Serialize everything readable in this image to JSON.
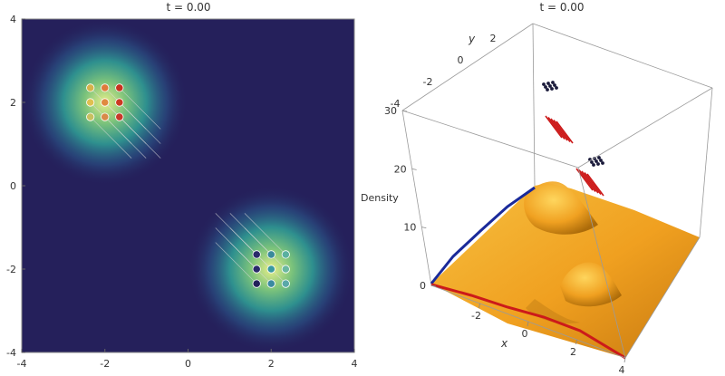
{
  "chart_data": [
    {
      "type": "heatmap",
      "title": "t = 0.00",
      "xlim": [
        -4,
        4
      ],
      "ylim": [
        -4,
        4
      ],
      "x_ticks": [
        -4,
        -2,
        0,
        2,
        4
      ],
      "y_ticks": [
        -4,
        -2,
        0,
        2,
        4
      ],
      "colormap": [
        "#24205a",
        "#2a5a8c",
        "#2f9c94",
        "#7cc37b",
        "#e6ee8a"
      ],
      "background_color": "#25205b",
      "density_peaks": [
        {
          "x": -2,
          "y": 2,
          "sigma": 1.0
        },
        {
          "x": 2,
          "y": -2,
          "sigma": 1.0
        }
      ],
      "particle_groups": [
        {
          "center": [
            -2,
            2
          ],
          "grid": [
            3,
            3
          ],
          "spacing": 0.35,
          "colors": [
            [
              "#d6b24a",
              "#e07a3a",
              "#c8321e"
            ],
            [
              "#e0c050",
              "#e08a40",
              "#cc3a22"
            ],
            [
              "#c8c060",
              "#d88a48",
              "#c83a2a"
            ]
          ],
          "trail_direction": [
            1.0,
            -1.0
          ],
          "trail_length": 1.4
        },
        {
          "center": [
            2,
            -2
          ],
          "grid": [
            3,
            3
          ],
          "spacing": 0.35,
          "colors": [
            [
              "#2a2a6a",
              "#3a8a9a",
              "#5ab0a0"
            ],
            [
              "#2a2a6a",
              "#3a9aa0",
              "#6ab8a0"
            ],
            [
              "#22225a",
              "#3a8aa0",
              "#5aa8a8"
            ]
          ],
          "trail_direction": [
            -1.0,
            1.0
          ],
          "trail_length": 1.4
        }
      ]
    },
    {
      "type": "surface3d",
      "title": "t = 0.00",
      "xlabel": "x",
      "ylabel": "y",
      "zlabel": "Density",
      "x_ticks": [
        -2,
        0,
        2,
        4
      ],
      "y_ticks": [
        -4,
        -2,
        0,
        2
      ],
      "z_ticks": [
        0,
        10,
        20,
        30
      ],
      "surface_color": "#f0a020",
      "edge_colors": {
        "x_edge": "#cc1a1a",
        "y_edge": "#1a2a9a"
      },
      "markers": [
        {
          "kind": "dots",
          "color": "#1a1a3a",
          "count": 9
        },
        {
          "kind": "lines",
          "color": "#cc1a1a",
          "count": 5
        },
        {
          "kind": "lines",
          "color": "#cc1a1a",
          "count": 5
        },
        {
          "kind": "dots",
          "color": "#1a1a3a",
          "count": 9
        }
      ]
    }
  ]
}
